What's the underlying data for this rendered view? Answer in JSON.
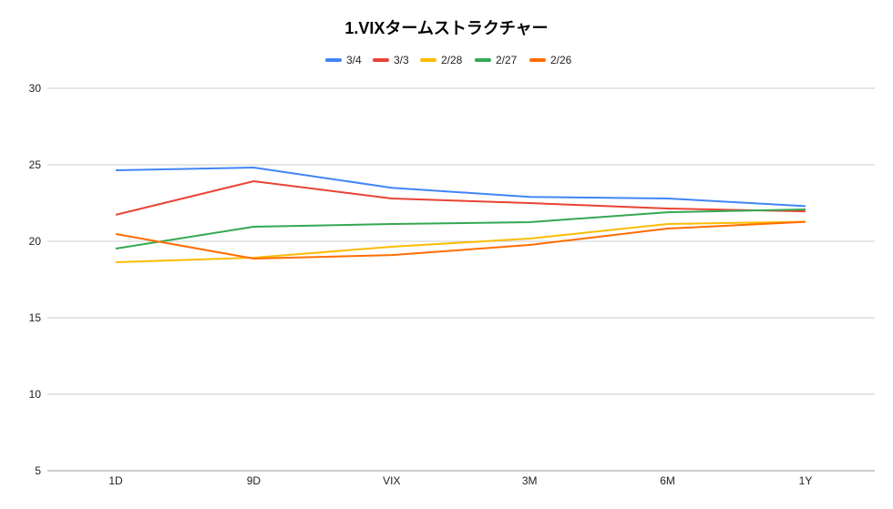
{
  "chart_data": {
    "type": "line",
    "title": "1.VIXタームストラクチャー",
    "xlabel": "",
    "ylabel": "",
    "categories": [
      "1D",
      "9D",
      "VIX",
      "3M",
      "6M",
      "1Y"
    ],
    "ylim": [
      5,
      30
    ],
    "yticks": [
      5,
      10,
      15,
      20,
      25,
      30
    ],
    "grid": true,
    "legend_position": "top",
    "series": [
      {
        "name": "3/4",
        "color": "#4285f4",
        "values": [
          24.64,
          24.82,
          23.5,
          22.9,
          22.8,
          22.3
        ]
      },
      {
        "name": "3/3",
        "color": "#ea4335",
        "values": [
          21.73,
          23.93,
          22.8,
          22.5,
          22.14,
          21.96
        ]
      },
      {
        "name": "2/28",
        "color": "#fbbc04",
        "values": [
          18.63,
          18.93,
          19.64,
          20.18,
          21.13,
          21.28
        ]
      },
      {
        "name": "2/27",
        "color": "#34a853",
        "values": [
          19.52,
          20.95,
          21.13,
          21.25,
          21.9,
          22.08
        ]
      },
      {
        "name": "2/26",
        "color": "#ff6d01",
        "values": [
          20.48,
          18.87,
          19.1,
          19.76,
          20.83,
          21.27
        ]
      }
    ]
  }
}
